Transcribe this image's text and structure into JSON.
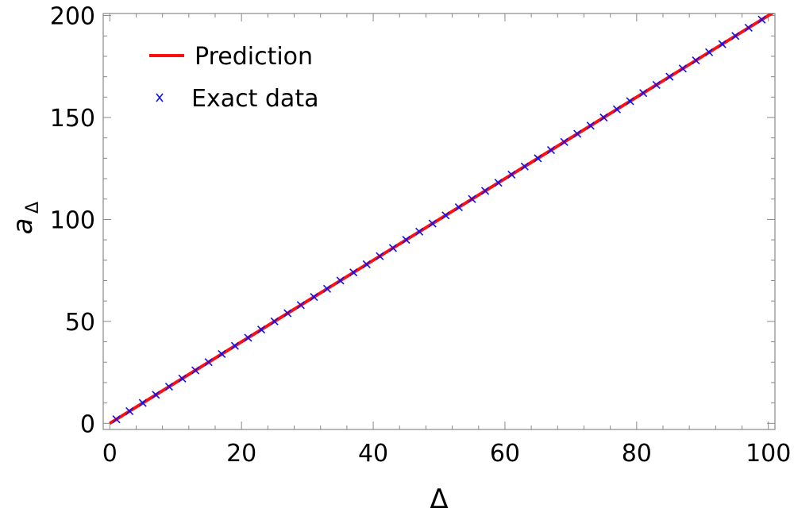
{
  "chart_data": {
    "type": "line",
    "xlabel": "Δ",
    "ylabel": {
      "base": "a",
      "subscript": "Δ"
    },
    "xlim": [
      -1,
      101
    ],
    "ylim": [
      -3,
      201
    ],
    "xticks": [
      0,
      20,
      40,
      60,
      80,
      100
    ],
    "yticks": [
      0,
      50,
      100,
      150,
      200
    ],
    "x_tick_labels": [
      "0",
      "20",
      "40",
      "60",
      "80",
      "100"
    ],
    "y_tick_labels": [
      "0",
      "50",
      "100",
      "150",
      "200"
    ],
    "grid": false,
    "legend_position": "top-left",
    "series": [
      {
        "name": "Prediction",
        "kind": "line",
        "color": "#ff1010",
        "x": [
          0,
          101
        ],
        "y": [
          0,
          202
        ]
      },
      {
        "name": "Exact data",
        "kind": "scatter",
        "marker": "x",
        "color": "#1010ee",
        "x": [
          1,
          3,
          5,
          7,
          9,
          11,
          13,
          15,
          17,
          19,
          21,
          23,
          25,
          27,
          29,
          31,
          33,
          35,
          37,
          39,
          41,
          43,
          45,
          47,
          49,
          51,
          53,
          55,
          57,
          59,
          61,
          63,
          65,
          67,
          69,
          71,
          73,
          75,
          77,
          79,
          81,
          83,
          85,
          87,
          89,
          91,
          93,
          95,
          97,
          99
        ],
        "y": [
          2,
          6,
          10,
          14,
          18,
          22,
          26,
          30,
          34,
          38,
          42,
          46,
          50,
          54,
          58,
          62,
          66,
          70,
          74,
          78,
          82,
          86,
          90,
          94,
          98,
          102,
          106,
          110,
          114,
          118,
          122,
          126,
          130,
          134,
          138,
          142,
          146,
          150,
          154,
          158,
          162,
          166,
          170,
          174,
          178,
          182,
          186,
          190,
          194,
          198
        ]
      }
    ]
  }
}
